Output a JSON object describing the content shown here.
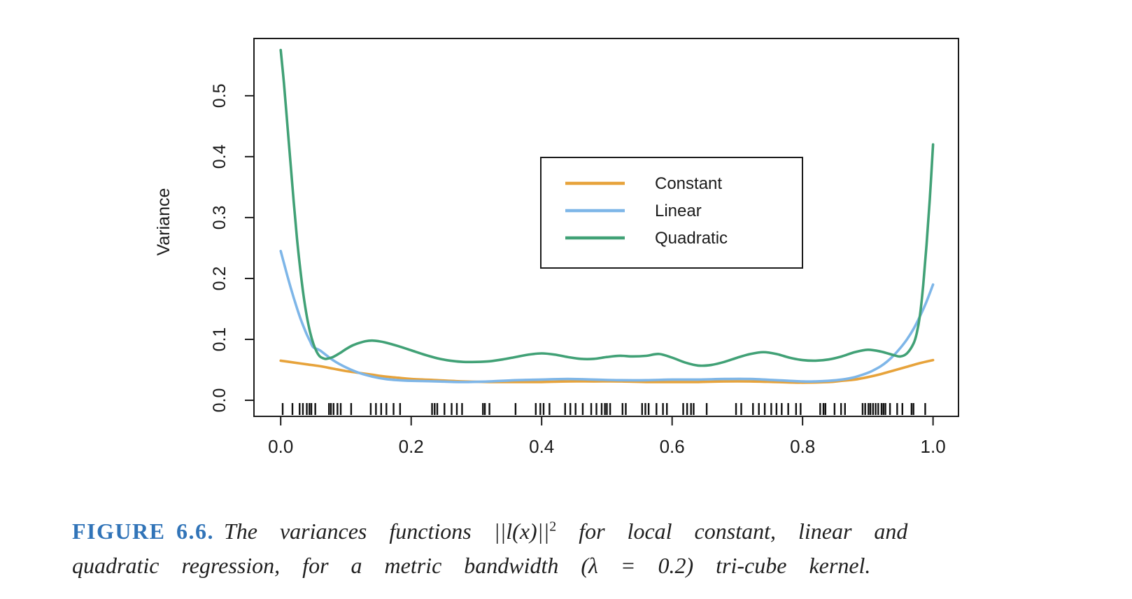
{
  "figure": {
    "caption_label": "FIGURE 6.6.",
    "caption_label_color": "#3174B8",
    "caption_line1_pre": "The variances functions ",
    "caption_math": "||l(x)||",
    "caption_sup": "2",
    "caption_line1_post": " for local constant, linear and",
    "caption_line2": "quadratic regression, for a metric bandwidth (λ = 0.2) tri-cube kernel."
  },
  "chart_data": {
    "type": "line",
    "title": "",
    "xlabel": "",
    "ylabel": "Variance",
    "xlim": [
      -0.041,
      1.039
    ],
    "ylim": [
      -0.0264,
      0.594
    ],
    "xticks": [
      0.0,
      0.2,
      0.4,
      0.6,
      0.8,
      1.0
    ],
    "yticks": [
      0.0,
      0.1,
      0.2,
      0.3,
      0.4,
      0.5
    ],
    "grid": false,
    "legend_position": "upper-center boxed",
    "axis_color": "#1b1b1b",
    "series": [
      {
        "name": "Constant",
        "color": "#E7A33B",
        "points": [
          [
            0,
            0.065
          ],
          [
            0.02,
            0.062
          ],
          [
            0.04,
            0.059
          ],
          [
            0.06,
            0.056
          ],
          [
            0.08,
            0.052
          ],
          [
            0.1,
            0.048
          ],
          [
            0.12,
            0.045
          ],
          [
            0.14,
            0.042
          ],
          [
            0.16,
            0.039
          ],
          [
            0.18,
            0.037
          ],
          [
            0.2,
            0.035
          ],
          [
            0.24,
            0.033
          ],
          [
            0.28,
            0.031
          ],
          [
            0.32,
            0.03
          ],
          [
            0.36,
            0.03
          ],
          [
            0.4,
            0.03
          ],
          [
            0.44,
            0.031
          ],
          [
            0.48,
            0.031
          ],
          [
            0.52,
            0.031
          ],
          [
            0.56,
            0.03
          ],
          [
            0.6,
            0.03
          ],
          [
            0.64,
            0.03
          ],
          [
            0.68,
            0.031
          ],
          [
            0.72,
            0.031
          ],
          [
            0.76,
            0.03
          ],
          [
            0.8,
            0.029
          ],
          [
            0.84,
            0.03
          ],
          [
            0.86,
            0.032
          ],
          [
            0.88,
            0.034
          ],
          [
            0.9,
            0.038
          ],
          [
            0.92,
            0.043
          ],
          [
            0.94,
            0.049
          ],
          [
            0.96,
            0.055
          ],
          [
            0.98,
            0.061
          ],
          [
            1.0,
            0.066
          ]
        ]
      },
      {
        "name": "Linear",
        "color": "#7EB6E8",
        "points": [
          [
            0,
            0.245
          ],
          [
            0.005,
            0.225
          ],
          [
            0.01,
            0.205
          ],
          [
            0.015,
            0.186
          ],
          [
            0.02,
            0.168
          ],
          [
            0.025,
            0.151
          ],
          [
            0.03,
            0.135
          ],
          [
            0.035,
            0.121
          ],
          [
            0.04,
            0.108
          ],
          [
            0.045,
            0.097
          ],
          [
            0.05,
            0.087
          ],
          [
            0.06,
            0.082
          ],
          [
            0.08,
            0.066
          ],
          [
            0.1,
            0.054
          ],
          [
            0.12,
            0.045
          ],
          [
            0.14,
            0.039
          ],
          [
            0.16,
            0.035
          ],
          [
            0.18,
            0.033
          ],
          [
            0.2,
            0.032
          ],
          [
            0.24,
            0.031
          ],
          [
            0.28,
            0.03
          ],
          [
            0.32,
            0.031
          ],
          [
            0.36,
            0.033
          ],
          [
            0.4,
            0.034
          ],
          [
            0.44,
            0.035
          ],
          [
            0.48,
            0.034
          ],
          [
            0.52,
            0.033
          ],
          [
            0.56,
            0.033
          ],
          [
            0.6,
            0.034
          ],
          [
            0.64,
            0.034
          ],
          [
            0.68,
            0.035
          ],
          [
            0.72,
            0.035
          ],
          [
            0.76,
            0.033
          ],
          [
            0.8,
            0.031
          ],
          [
            0.82,
            0.031
          ],
          [
            0.84,
            0.032
          ],
          [
            0.86,
            0.034
          ],
          [
            0.88,
            0.038
          ],
          [
            0.9,
            0.045
          ],
          [
            0.91,
            0.05
          ],
          [
            0.92,
            0.056
          ],
          [
            0.93,
            0.064
          ],
          [
            0.94,
            0.074
          ],
          [
            0.95,
            0.086
          ],
          [
            0.96,
            0.1
          ],
          [
            0.97,
            0.117
          ],
          [
            0.98,
            0.138
          ],
          [
            0.99,
            0.162
          ],
          [
            1.0,
            0.19
          ]
        ]
      },
      {
        "name": "Quadratic",
        "color": "#41A176",
        "points": [
          [
            0,
            0.575
          ],
          [
            0.005,
            0.52
          ],
          [
            0.01,
            0.455
          ],
          [
            0.015,
            0.39
          ],
          [
            0.02,
            0.325
          ],
          [
            0.025,
            0.265
          ],
          [
            0.03,
            0.215
          ],
          [
            0.035,
            0.172
          ],
          [
            0.04,
            0.138
          ],
          [
            0.045,
            0.112
          ],
          [
            0.05,
            0.093
          ],
          [
            0.055,
            0.08
          ],
          [
            0.06,
            0.072
          ],
          [
            0.065,
            0.069
          ],
          [
            0.07,
            0.068
          ],
          [
            0.08,
            0.071
          ],
          [
            0.09,
            0.077
          ],
          [
            0.1,
            0.084
          ],
          [
            0.11,
            0.09
          ],
          [
            0.12,
            0.094
          ],
          [
            0.13,
            0.097
          ],
          [
            0.14,
            0.098
          ],
          [
            0.15,
            0.097
          ],
          [
            0.16,
            0.095
          ],
          [
            0.18,
            0.089
          ],
          [
            0.2,
            0.082
          ],
          [
            0.22,
            0.075
          ],
          [
            0.24,
            0.069
          ],
          [
            0.26,
            0.065
          ],
          [
            0.28,
            0.063
          ],
          [
            0.3,
            0.063
          ],
          [
            0.32,
            0.064
          ],
          [
            0.34,
            0.067
          ],
          [
            0.36,
            0.071
          ],
          [
            0.38,
            0.075
          ],
          [
            0.4,
            0.077
          ],
          [
            0.42,
            0.075
          ],
          [
            0.44,
            0.071
          ],
          [
            0.46,
            0.068
          ],
          [
            0.48,
            0.068
          ],
          [
            0.5,
            0.071
          ],
          [
            0.52,
            0.073
          ],
          [
            0.54,
            0.072
          ],
          [
            0.56,
            0.073
          ],
          [
            0.58,
            0.076
          ],
          [
            0.6,
            0.07
          ],
          [
            0.62,
            0.062
          ],
          [
            0.64,
            0.057
          ],
          [
            0.66,
            0.058
          ],
          [
            0.68,
            0.063
          ],
          [
            0.7,
            0.07
          ],
          [
            0.72,
            0.076
          ],
          [
            0.74,
            0.079
          ],
          [
            0.76,
            0.076
          ],
          [
            0.78,
            0.07
          ],
          [
            0.8,
            0.066
          ],
          [
            0.82,
            0.065
          ],
          [
            0.84,
            0.067
          ],
          [
            0.86,
            0.072
          ],
          [
            0.88,
            0.079
          ],
          [
            0.9,
            0.083
          ],
          [
            0.92,
            0.08
          ],
          [
            0.94,
            0.074
          ],
          [
            0.95,
            0.072
          ],
          [
            0.96,
            0.077
          ],
          [
            0.97,
            0.093
          ],
          [
            0.975,
            0.11
          ],
          [
            0.98,
            0.14
          ],
          [
            0.985,
            0.19
          ],
          [
            0.99,
            0.255
          ],
          [
            0.995,
            0.33
          ],
          [
            1.0,
            0.42
          ]
        ]
      }
    ],
    "rug_x": [
      0.003,
      0.018,
      0.029,
      0.034,
      0.04,
      0.044,
      0.047,
      0.053,
      0.074,
      0.077,
      0.081,
      0.087,
      0.092,
      0.108,
      0.138,
      0.146,
      0.154,
      0.162,
      0.173,
      0.183,
      0.232,
      0.236,
      0.24,
      0.251,
      0.262,
      0.27,
      0.278,
      0.31,
      0.313,
      0.32,
      0.36,
      0.391,
      0.398,
      0.403,
      0.412,
      0.436,
      0.444,
      0.452,
      0.463,
      0.476,
      0.484,
      0.492,
      0.497,
      0.5,
      0.505,
      0.524,
      0.529,
      0.554,
      0.559,
      0.564,
      0.576,
      0.586,
      0.592,
      0.617,
      0.623,
      0.629,
      0.633,
      0.653,
      0.698,
      0.706,
      0.724,
      0.733,
      0.742,
      0.752,
      0.76,
      0.768,
      0.778,
      0.79,
      0.797,
      0.827,
      0.832,
      0.835,
      0.849,
      0.859,
      0.865,
      0.892,
      0.896,
      0.901,
      0.904,
      0.908,
      0.912,
      0.916,
      0.921,
      0.924,
      0.927,
      0.934,
      0.945,
      0.953,
      0.967,
      0.97,
      0.988
    ]
  }
}
